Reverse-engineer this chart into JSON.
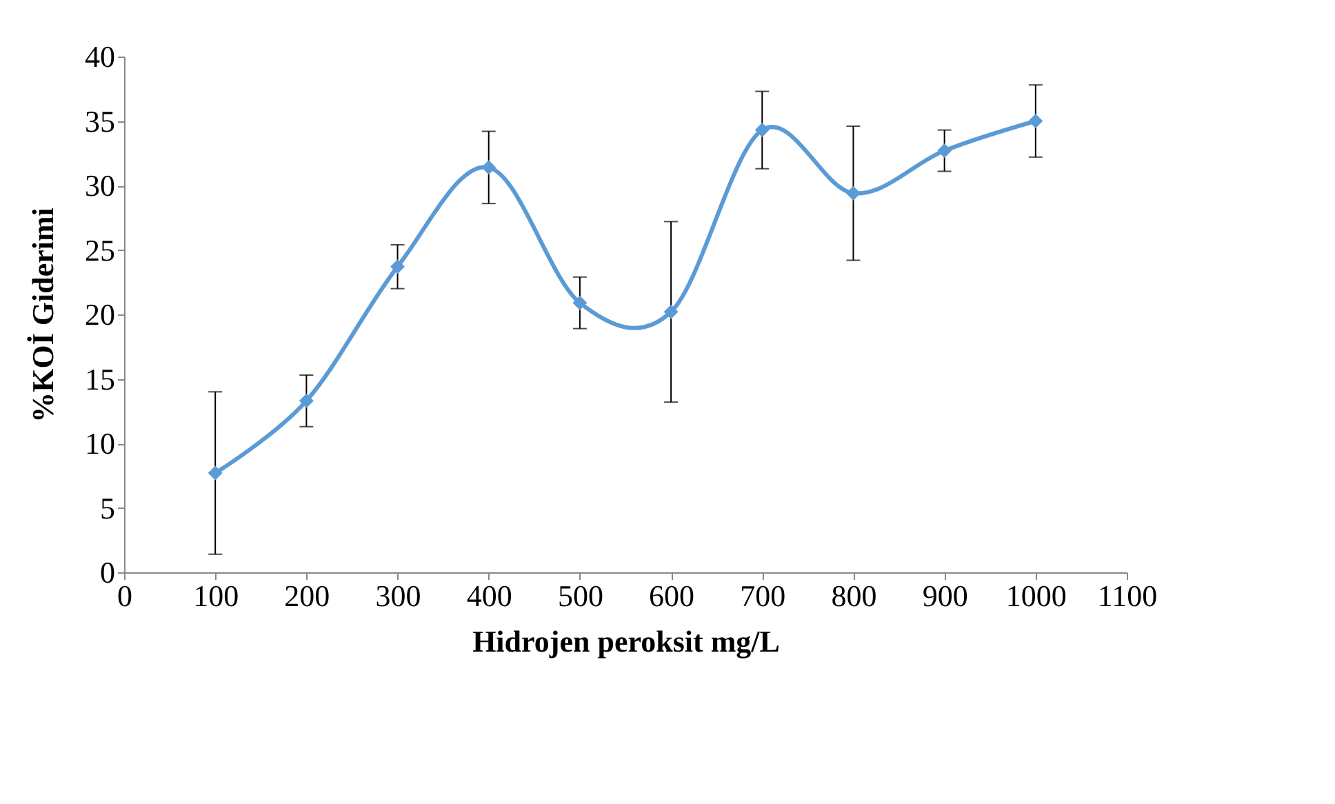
{
  "chart_data": {
    "type": "line",
    "xlabel": "Hidrojen peroksit mg/L",
    "ylabel": "%KOİ Giderimi",
    "x": [
      100,
      200,
      300,
      400,
      500,
      600,
      700,
      800,
      900,
      1000
    ],
    "series": [
      {
        "color": "#5b9bd5",
        "values": [
          7.7,
          13.3,
          23.7,
          31.4,
          20.9,
          20.2,
          34.3,
          29.4,
          32.7,
          35.0
        ],
        "errors": [
          6.3,
          2.0,
          1.7,
          2.8,
          2.0,
          7.0,
          3.0,
          5.2,
          1.6,
          2.8
        ]
      }
    ],
    "xlim": [
      0,
      1100
    ],
    "xticks": [
      0,
      100,
      200,
      300,
      400,
      500,
      600,
      700,
      800,
      900,
      1000,
      1100
    ],
    "ylim": [
      0,
      40
    ],
    "yticks": [
      0,
      5,
      10,
      15,
      20,
      25,
      30,
      35,
      40
    ],
    "marker": "diamond",
    "grid": false
  }
}
